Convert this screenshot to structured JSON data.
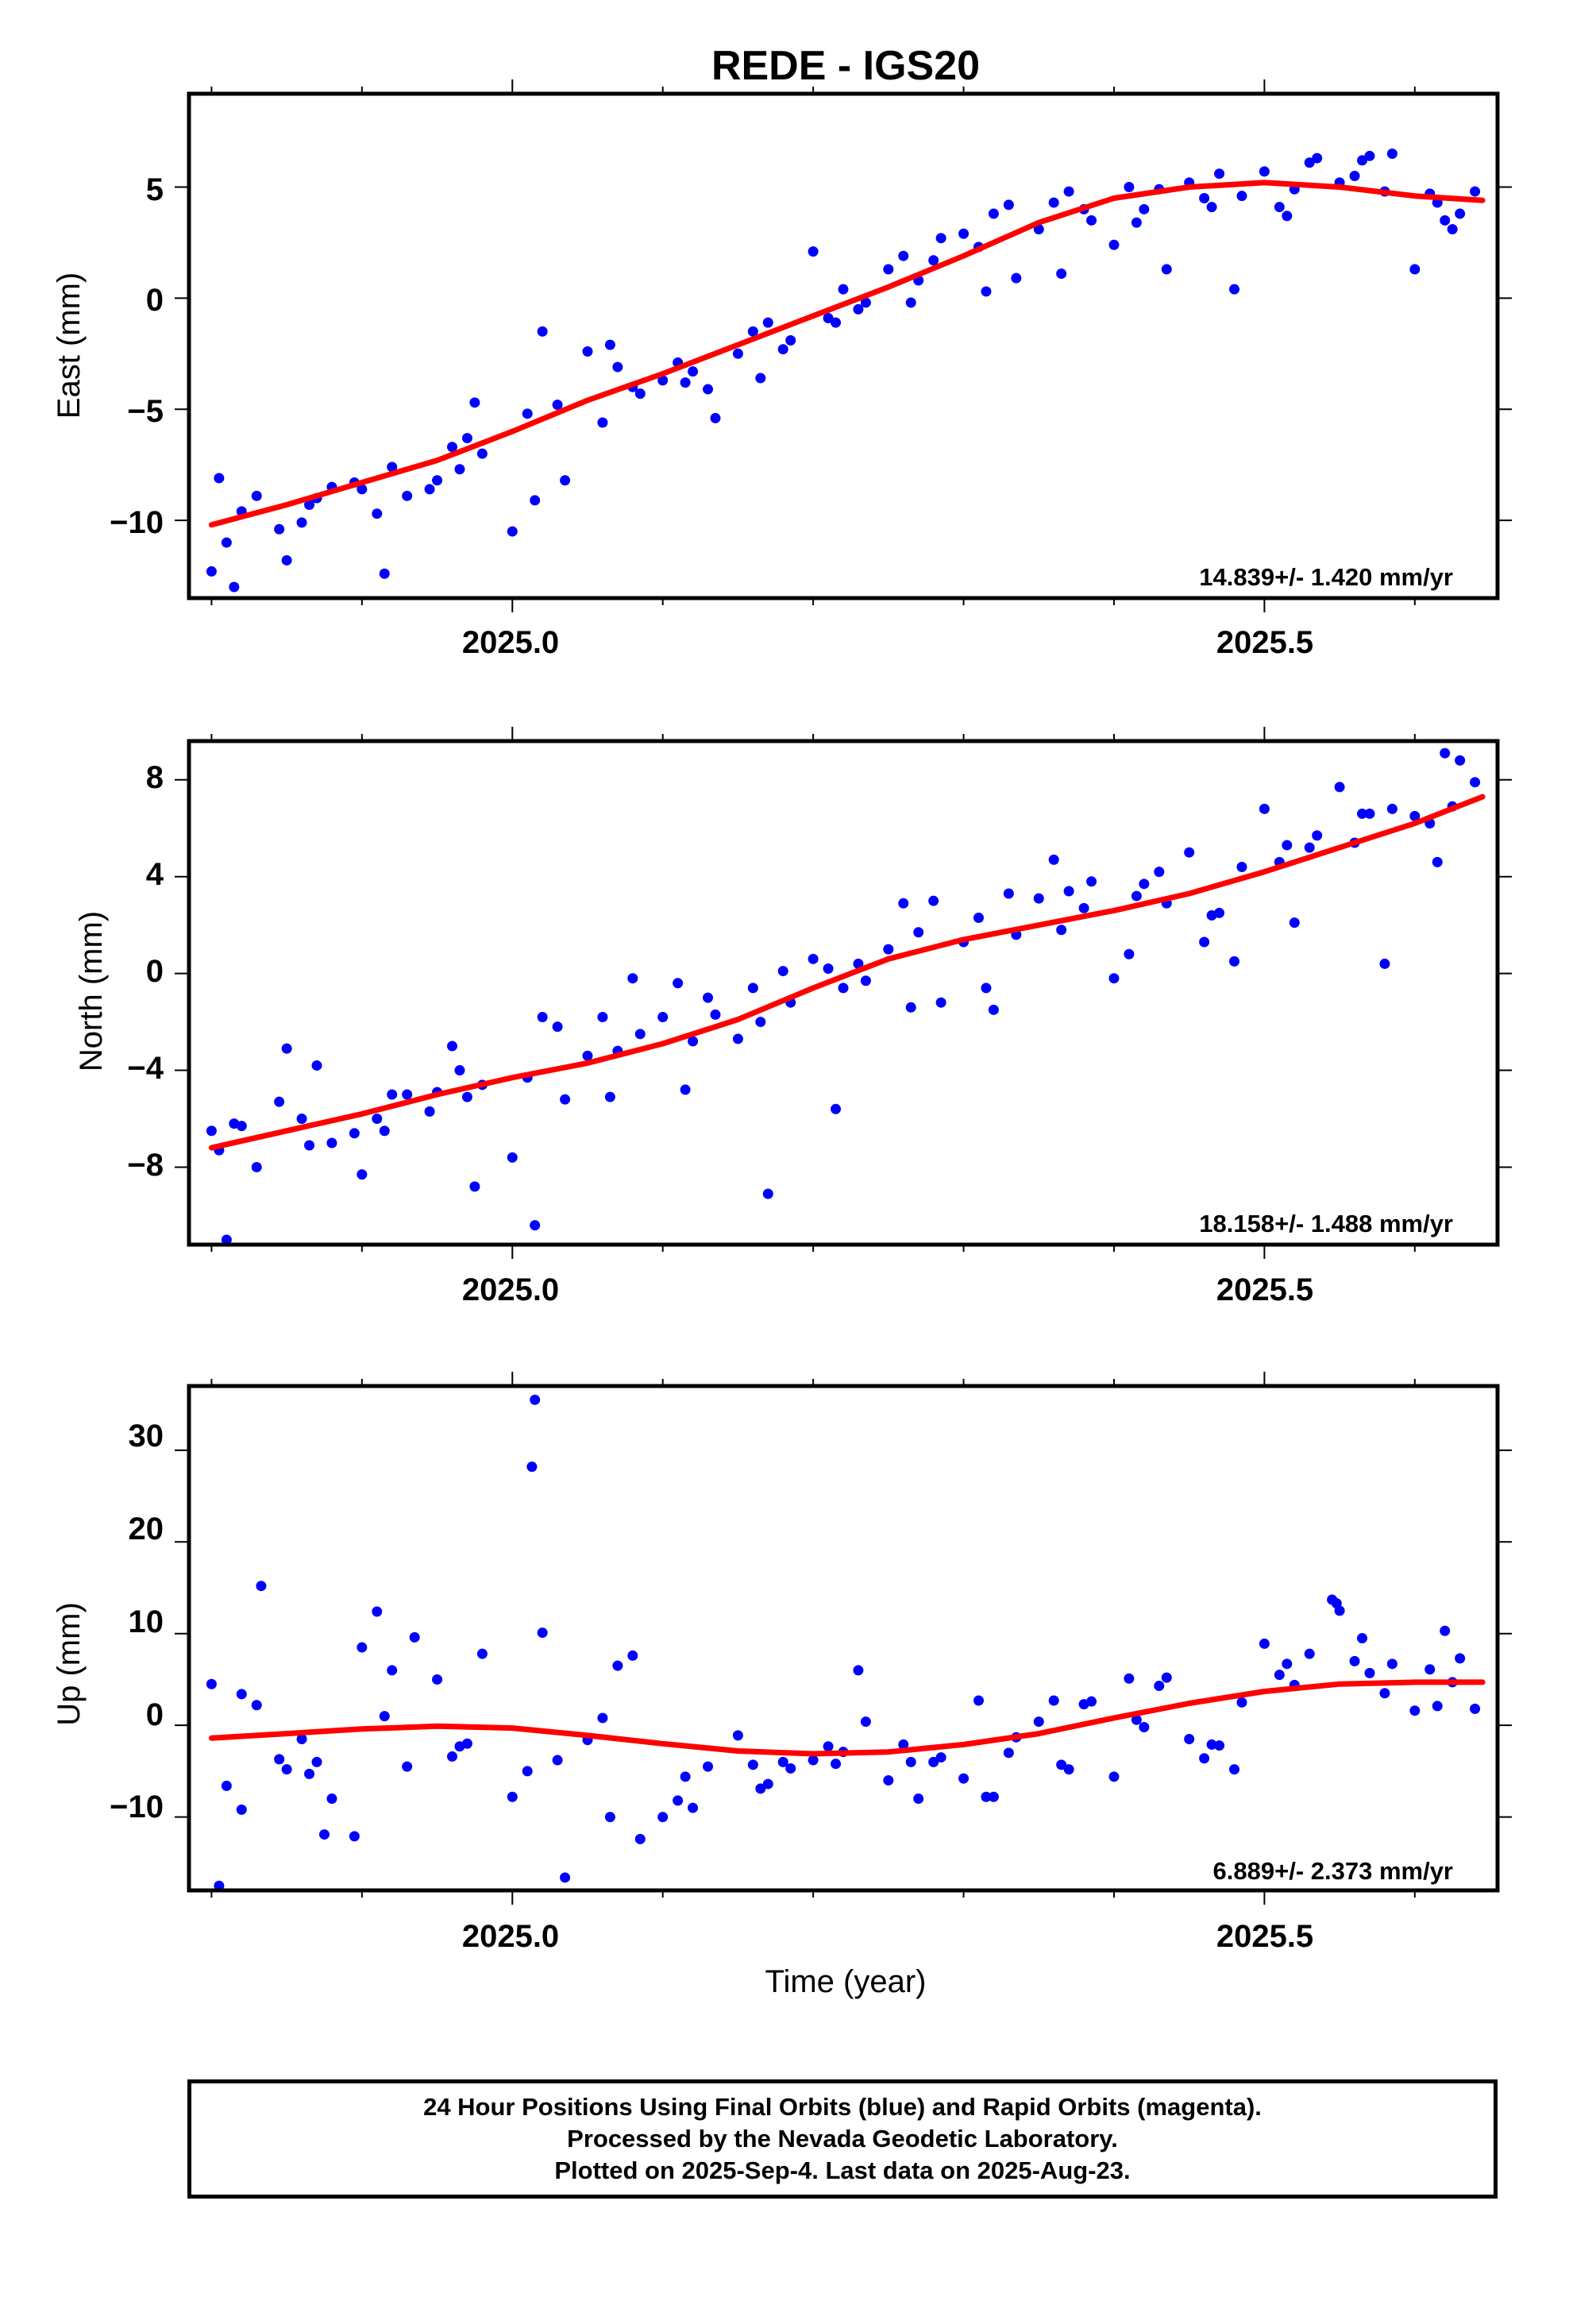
{
  "title": "REDE - IGS20",
  "colors": {
    "data": "#0000ff",
    "fit": "#ff0000",
    "axis": "#000000"
  },
  "footer": {
    "line1": "24 Hour Positions Using Final Orbits (blue) and Rapid Orbits (magenta).",
    "line2": "Processed by the Nevada Geodetic Laboratory.",
    "line3": "Plotted on 2025-Sep-4. Last data on 2025-Aug-23."
  },
  "chart_data": [
    {
      "type": "scatter",
      "title": "REDE - IGS20",
      "ylabel": "East (mm)",
      "xlabel": "",
      "xlim": [
        2024.785,
        2025.655
      ],
      "ylim": [
        -13.5,
        9.2
      ],
      "xticks": [
        2025.0,
        2025.5
      ],
      "xtick_labels": [
        "2025.0",
        "2025.5"
      ],
      "yticks": [
        -10,
        -5,
        0,
        5
      ],
      "ytick_labels": [
        "−10",
        "−5",
        "0",
        "5"
      ],
      "rate_label": "14.839+/- 1.420 mm/yr",
      "series": [
        {
          "type": "scatter",
          "x": [
            2024.8,
            2024.81,
            2024.82,
            2024.83,
            2024.85,
            2024.86,
            2024.87,
            2024.88,
            2024.9,
            2024.91,
            2024.92,
            2024.93,
            2024.95,
            2024.96,
            2024.97,
            2024.98,
            2025.0,
            2025.01,
            2025.02,
            2025.03,
            2025.05,
            2025.06,
            2025.07,
            2025.08,
            2025.1,
            2025.11,
            2025.12,
            2025.13,
            2025.15,
            2025.16,
            2025.17,
            2025.18,
            2025.2,
            2025.21,
            2025.22,
            2025.23,
            2025.25,
            2025.26,
            2025.27,
            2025.28,
            2025.3,
            2025.31,
            2025.32,
            2025.33,
            2025.35,
            2025.36,
            2025.37,
            2025.38,
            2025.4,
            2025.41,
            2025.42,
            2025.43,
            2025.45,
            2025.46,
            2025.47,
            2025.48,
            2025.5,
            2025.51,
            2025.52,
            2025.53,
            2025.55,
            2025.56,
            2025.57,
            2025.58,
            2025.6,
            2025.61,
            2025.62,
            2025.63,
            2025.64,
            2024.805,
            2024.845,
            2024.895,
            2024.945,
            2024.975,
            2025.015,
            2025.065,
            2025.115,
            2025.165,
            2025.215,
            2025.265,
            2025.315,
            2025.365,
            2025.415,
            2025.465,
            2025.515,
            2025.565,
            2025.615,
            2024.815,
            2024.865,
            2024.915,
            2024.965,
            2025.035,
            2025.085,
            2025.135,
            2025.185,
            2025.235,
            2025.285,
            2025.335,
            2025.385,
            2025.435,
            2025.485,
            2025.535,
            2025.585,
            2025.625
          ],
          "y": [
            -12.3,
            -11.0,
            -9.6,
            -8.9,
            -11.8,
            -10.1,
            -9.0,
            -8.5,
            -8.6,
            -9.7,
            -7.6,
            -8.9,
            -8.2,
            -6.7,
            -6.3,
            -7.0,
            -10.5,
            -5.2,
            -1.5,
            -4.8,
            -2.4,
            -5.6,
            -3.1,
            -4.0,
            -3.7,
            -2.9,
            -3.3,
            -4.1,
            -2.5,
            -1.5,
            -1.1,
            -2.3,
            2.1,
            -0.9,
            0.4,
            -0.5,
            1.3,
            1.9,
            0.8,
            1.7,
            2.9,
            2.3,
            3.8,
            4.2,
            3.1,
            4.3,
            4.8,
            4.0,
            2.4,
            5.0,
            4.0,
            4.9,
            5.2,
            4.5,
            5.6,
            0.4,
            5.7,
            4.1,
            4.9,
            6.1,
            5.2,
            5.5,
            6.4,
            4.8,
            1.3,
            4.7,
            3.5,
            3.8,
            4.8,
            -8.1,
            -10.4,
            -8.3,
            -8.6,
            -4.7,
            -9.1,
            -2.1,
            -3.8,
            -3.6,
            -1.1,
            -0.2,
            0.3,
            1.1,
            3.4,
            4.1,
            3.7,
            6.2,
            4.3,
            -13.0,
            -9.3,
            -12.4,
            -7.7,
            -8.2,
            -4.3,
            -5.4,
            -1.9,
            -0.2,
            2.7,
            0.9,
            3.5,
            1.3,
            4.6,
            6.3,
            6.5,
            3.1
          ]
        },
        {
          "type": "line",
          "x": [
            2024.8,
            2024.85,
            2024.9,
            2024.95,
            2025.0,
            2025.05,
            2025.1,
            2025.15,
            2025.2,
            2025.25,
            2025.3,
            2025.35,
            2025.4,
            2025.45,
            2025.5,
            2025.55,
            2025.6,
            2025.645
          ],
          "y": [
            -10.2,
            -9.3,
            -8.3,
            -7.3,
            -6.0,
            -4.6,
            -3.4,
            -2.1,
            -0.8,
            0.5,
            1.9,
            3.4,
            4.5,
            5.0,
            5.2,
            5.0,
            4.6,
            4.4
          ]
        }
      ]
    },
    {
      "type": "scatter",
      "title": "",
      "ylabel": "North (mm)",
      "xlabel": "",
      "xlim": [
        2024.785,
        2025.655
      ],
      "ylim": [
        -11.2,
        9.6
      ],
      "xticks": [
        2025.0,
        2025.5
      ],
      "xtick_labels": [
        "2025.0",
        "2025.5"
      ],
      "yticks": [
        -8,
        -4,
        0,
        4,
        8
      ],
      "ytick_labels": [
        "−8",
        "−4",
        "0",
        "4",
        "8"
      ],
      "rate_label": "18.158+/- 1.488 mm/yr",
      "series": [
        {
          "type": "scatter",
          "x": [
            2024.8,
            2024.81,
            2024.82,
            2024.83,
            2024.85,
            2024.86,
            2024.87,
            2024.88,
            2024.9,
            2024.91,
            2024.92,
            2024.93,
            2024.95,
            2024.96,
            2024.97,
            2024.98,
            2025.0,
            2025.01,
            2025.02,
            2025.03,
            2025.05,
            2025.06,
            2025.07,
            2025.08,
            2025.1,
            2025.11,
            2025.12,
            2025.13,
            2025.15,
            2025.16,
            2025.17,
            2025.18,
            2025.2,
            2025.21,
            2025.22,
            2025.23,
            2025.25,
            2025.26,
            2025.27,
            2025.28,
            2025.3,
            2025.31,
            2025.32,
            2025.33,
            2025.35,
            2025.36,
            2025.37,
            2025.38,
            2025.4,
            2025.41,
            2025.42,
            2025.43,
            2025.45,
            2025.46,
            2025.47,
            2025.48,
            2025.5,
            2025.51,
            2025.52,
            2025.53,
            2025.55,
            2025.56,
            2025.57,
            2025.58,
            2025.6,
            2025.61,
            2025.62,
            2025.63,
            2025.64,
            2024.805,
            2024.845,
            2024.895,
            2024.945,
            2024.975,
            2025.015,
            2025.065,
            2025.115,
            2025.165,
            2025.215,
            2025.265,
            2025.315,
            2025.365,
            2025.415,
            2025.465,
            2025.515,
            2025.565,
            2025.615,
            2024.815,
            2024.865,
            2024.915,
            2024.965,
            2025.035,
            2025.085,
            2025.135,
            2025.185,
            2025.235,
            2025.285,
            2025.335,
            2025.385,
            2025.435,
            2025.485,
            2025.535,
            2025.585,
            2025.625
          ],
          "y": [
            -6.5,
            -11.0,
            -6.3,
            -8.0,
            -3.1,
            -6.0,
            -3.8,
            -7.0,
            -8.3,
            -6.0,
            -5.0,
            -5.0,
            -4.9,
            -3.0,
            -5.1,
            -4.6,
            -7.6,
            -4.3,
            -1.8,
            -2.2,
            -3.4,
            -1.8,
            -3.2,
            -0.2,
            -1.8,
            -0.4,
            -2.8,
            -1.0,
            -2.7,
            -0.6,
            -9.1,
            0.1,
            0.6,
            0.2,
            -0.6,
            0.4,
            1.0,
            2.9,
            1.7,
            3.0,
            1.3,
            2.3,
            -1.5,
            3.3,
            3.1,
            4.7,
            3.4,
            2.7,
            -0.2,
            0.8,
            3.7,
            4.2,
            5.0,
            1.3,
            2.5,
            0.5,
            6.8,
            4.6,
            2.1,
            5.2,
            7.7,
            5.4,
            6.6,
            0.4,
            6.5,
            6.2,
            9.1,
            8.8,
            7.9,
            -7.3,
            -5.3,
            -6.6,
            -5.7,
            -8.8,
            -10.4,
            -5.1,
            -4.8,
            -2.0,
            -5.6,
            -1.4,
            -0.6,
            1.8,
            3.2,
            2.4,
            5.3,
            6.6,
            4.6,
            -6.2,
            -7.1,
            -6.5,
            -4.0,
            -5.2,
            -2.5,
            -1.7,
            -1.2,
            -0.3,
            -1.2,
            1.6,
            3.8,
            2.9,
            4.4,
            5.7,
            6.8,
            6.9
          ]
        },
        {
          "type": "line",
          "x": [
            2024.8,
            2024.85,
            2024.9,
            2024.95,
            2025.0,
            2025.05,
            2025.1,
            2025.15,
            2025.2,
            2025.25,
            2025.3,
            2025.35,
            2025.4,
            2025.45,
            2025.5,
            2025.55,
            2025.6,
            2025.645
          ],
          "y": [
            -7.2,
            -6.5,
            -5.8,
            -5.0,
            -4.3,
            -3.7,
            -2.9,
            -1.9,
            -0.6,
            0.6,
            1.4,
            2.0,
            2.6,
            3.3,
            4.2,
            5.2,
            6.2,
            7.3
          ]
        }
      ]
    },
    {
      "type": "scatter",
      "title": "",
      "ylabel": "Up (mm)",
      "xlabel": "Time (year)",
      "xlim": [
        2024.785,
        2025.655
      ],
      "ylim": [
        -18,
        37
      ],
      "xticks": [
        2025.0,
        2025.5
      ],
      "xtick_labels": [
        "2025.0",
        "2025.5"
      ],
      "yticks": [
        -10,
        0,
        10,
        20,
        30
      ],
      "ytick_labels": [
        "−10",
        "0",
        "10",
        "20",
        "30"
      ],
      "rate_label": "6.889+/- 2.373 mm/yr",
      "series": [
        {
          "type": "scatter",
          "x": [
            2024.8,
            2024.81,
            2024.82,
            2024.83,
            2024.85,
            2024.86,
            2024.87,
            2024.88,
            2024.9,
            2024.91,
            2024.92,
            2024.93,
            2024.95,
            2024.96,
            2024.97,
            2024.98,
            2025.0,
            2025.01,
            2025.02,
            2025.03,
            2025.05,
            2025.06,
            2025.07,
            2025.08,
            2025.1,
            2025.11,
            2025.12,
            2025.13,
            2025.15,
            2025.16,
            2025.17,
            2025.18,
            2025.2,
            2025.21,
            2025.22,
            2025.23,
            2025.25,
            2025.26,
            2025.27,
            2025.28,
            2025.3,
            2025.31,
            2025.32,
            2025.33,
            2025.35,
            2025.36,
            2025.37,
            2025.38,
            2025.4,
            2025.41,
            2025.42,
            2025.43,
            2025.45,
            2025.46,
            2025.47,
            2025.48,
            2025.5,
            2025.51,
            2025.52,
            2025.53,
            2025.55,
            2025.56,
            2025.57,
            2025.58,
            2025.6,
            2025.61,
            2025.62,
            2025.63,
            2025.64,
            2025.015,
            2025.013,
            2024.805,
            2024.833,
            2024.82,
            2025.035,
            2024.875,
            2024.895,
            2025.545,
            2025.548,
            2024.845,
            2024.915,
            2024.965,
            2025.085,
            2025.165,
            2025.215,
            2025.265,
            2025.315,
            2025.365,
            2025.415,
            2025.465,
            2025.515,
            2025.565,
            2025.615,
            2024.865,
            2024.935,
            2025.065,
            2025.115,
            2025.185,
            2025.235,
            2025.285,
            2025.335,
            2025.385,
            2025.435,
            2025.485,
            2025.585,
            2025.625
          ],
          "y": [
            4.5,
            -6.6,
            3.4,
            2.2,
            -4.8,
            -1.5,
            -4.0,
            -8.0,
            8.5,
            12.4,
            6.0,
            -4.5,
            5.0,
            -3.4,
            -2.0,
            7.8,
            -7.8,
            -5.0,
            10.1,
            -3.8,
            -1.6,
            0.8,
            6.5,
            7.6,
            -10.0,
            -8.2,
            -9.0,
            -4.5,
            -1.1,
            -4.3,
            -6.4,
            -4.0,
            -3.8,
            -2.3,
            -2.9,
            6.0,
            -6.0,
            -2.1,
            -8.0,
            -4.0,
            -5.8,
            2.7,
            -7.8,
            -3.0,
            0.4,
            2.7,
            -4.8,
            2.3,
            -5.6,
            5.1,
            -0.2,
            4.3,
            -1.5,
            -3.6,
            -2.2,
            -4.8,
            8.9,
            5.5,
            4.4,
            7.8,
            12.5,
            7.0,
            5.7,
            3.5,
            1.6,
            6.1,
            10.3,
            7.3,
            1.8,
            35.5,
            28.2,
            -17.5,
            15.2,
            -9.2,
            -16.6,
            -11.9,
            -12.1,
            13.7,
            13.3,
            -3.7,
            1.0,
            -2.3,
            -12.4,
            -6.9,
            -4.2,
            -4.0,
            -7.8,
            -4.3,
            0.6,
            -2.1,
            6.7,
            9.5,
            2.1,
            -5.3,
            9.6,
            -10.0,
            -5.6,
            -4.7,
            0.4,
            -3.5,
            -1.3,
            2.6,
            5.2,
            2.5,
            6.7,
            4.7
          ]
        },
        {
          "type": "line",
          "x": [
            2024.8,
            2024.85,
            2024.9,
            2024.95,
            2025.0,
            2025.05,
            2025.1,
            2025.15,
            2025.2,
            2025.25,
            2025.3,
            2025.35,
            2025.4,
            2025.45,
            2025.5,
            2025.55,
            2025.6,
            2025.645
          ],
          "y": [
            -1.4,
            -0.9,
            -0.4,
            -0.1,
            -0.3,
            -1.1,
            -2.0,
            -2.8,
            -3.1,
            -2.9,
            -2.1,
            -0.9,
            0.8,
            2.4,
            3.7,
            4.5,
            4.7,
            4.7
          ]
        }
      ]
    }
  ]
}
